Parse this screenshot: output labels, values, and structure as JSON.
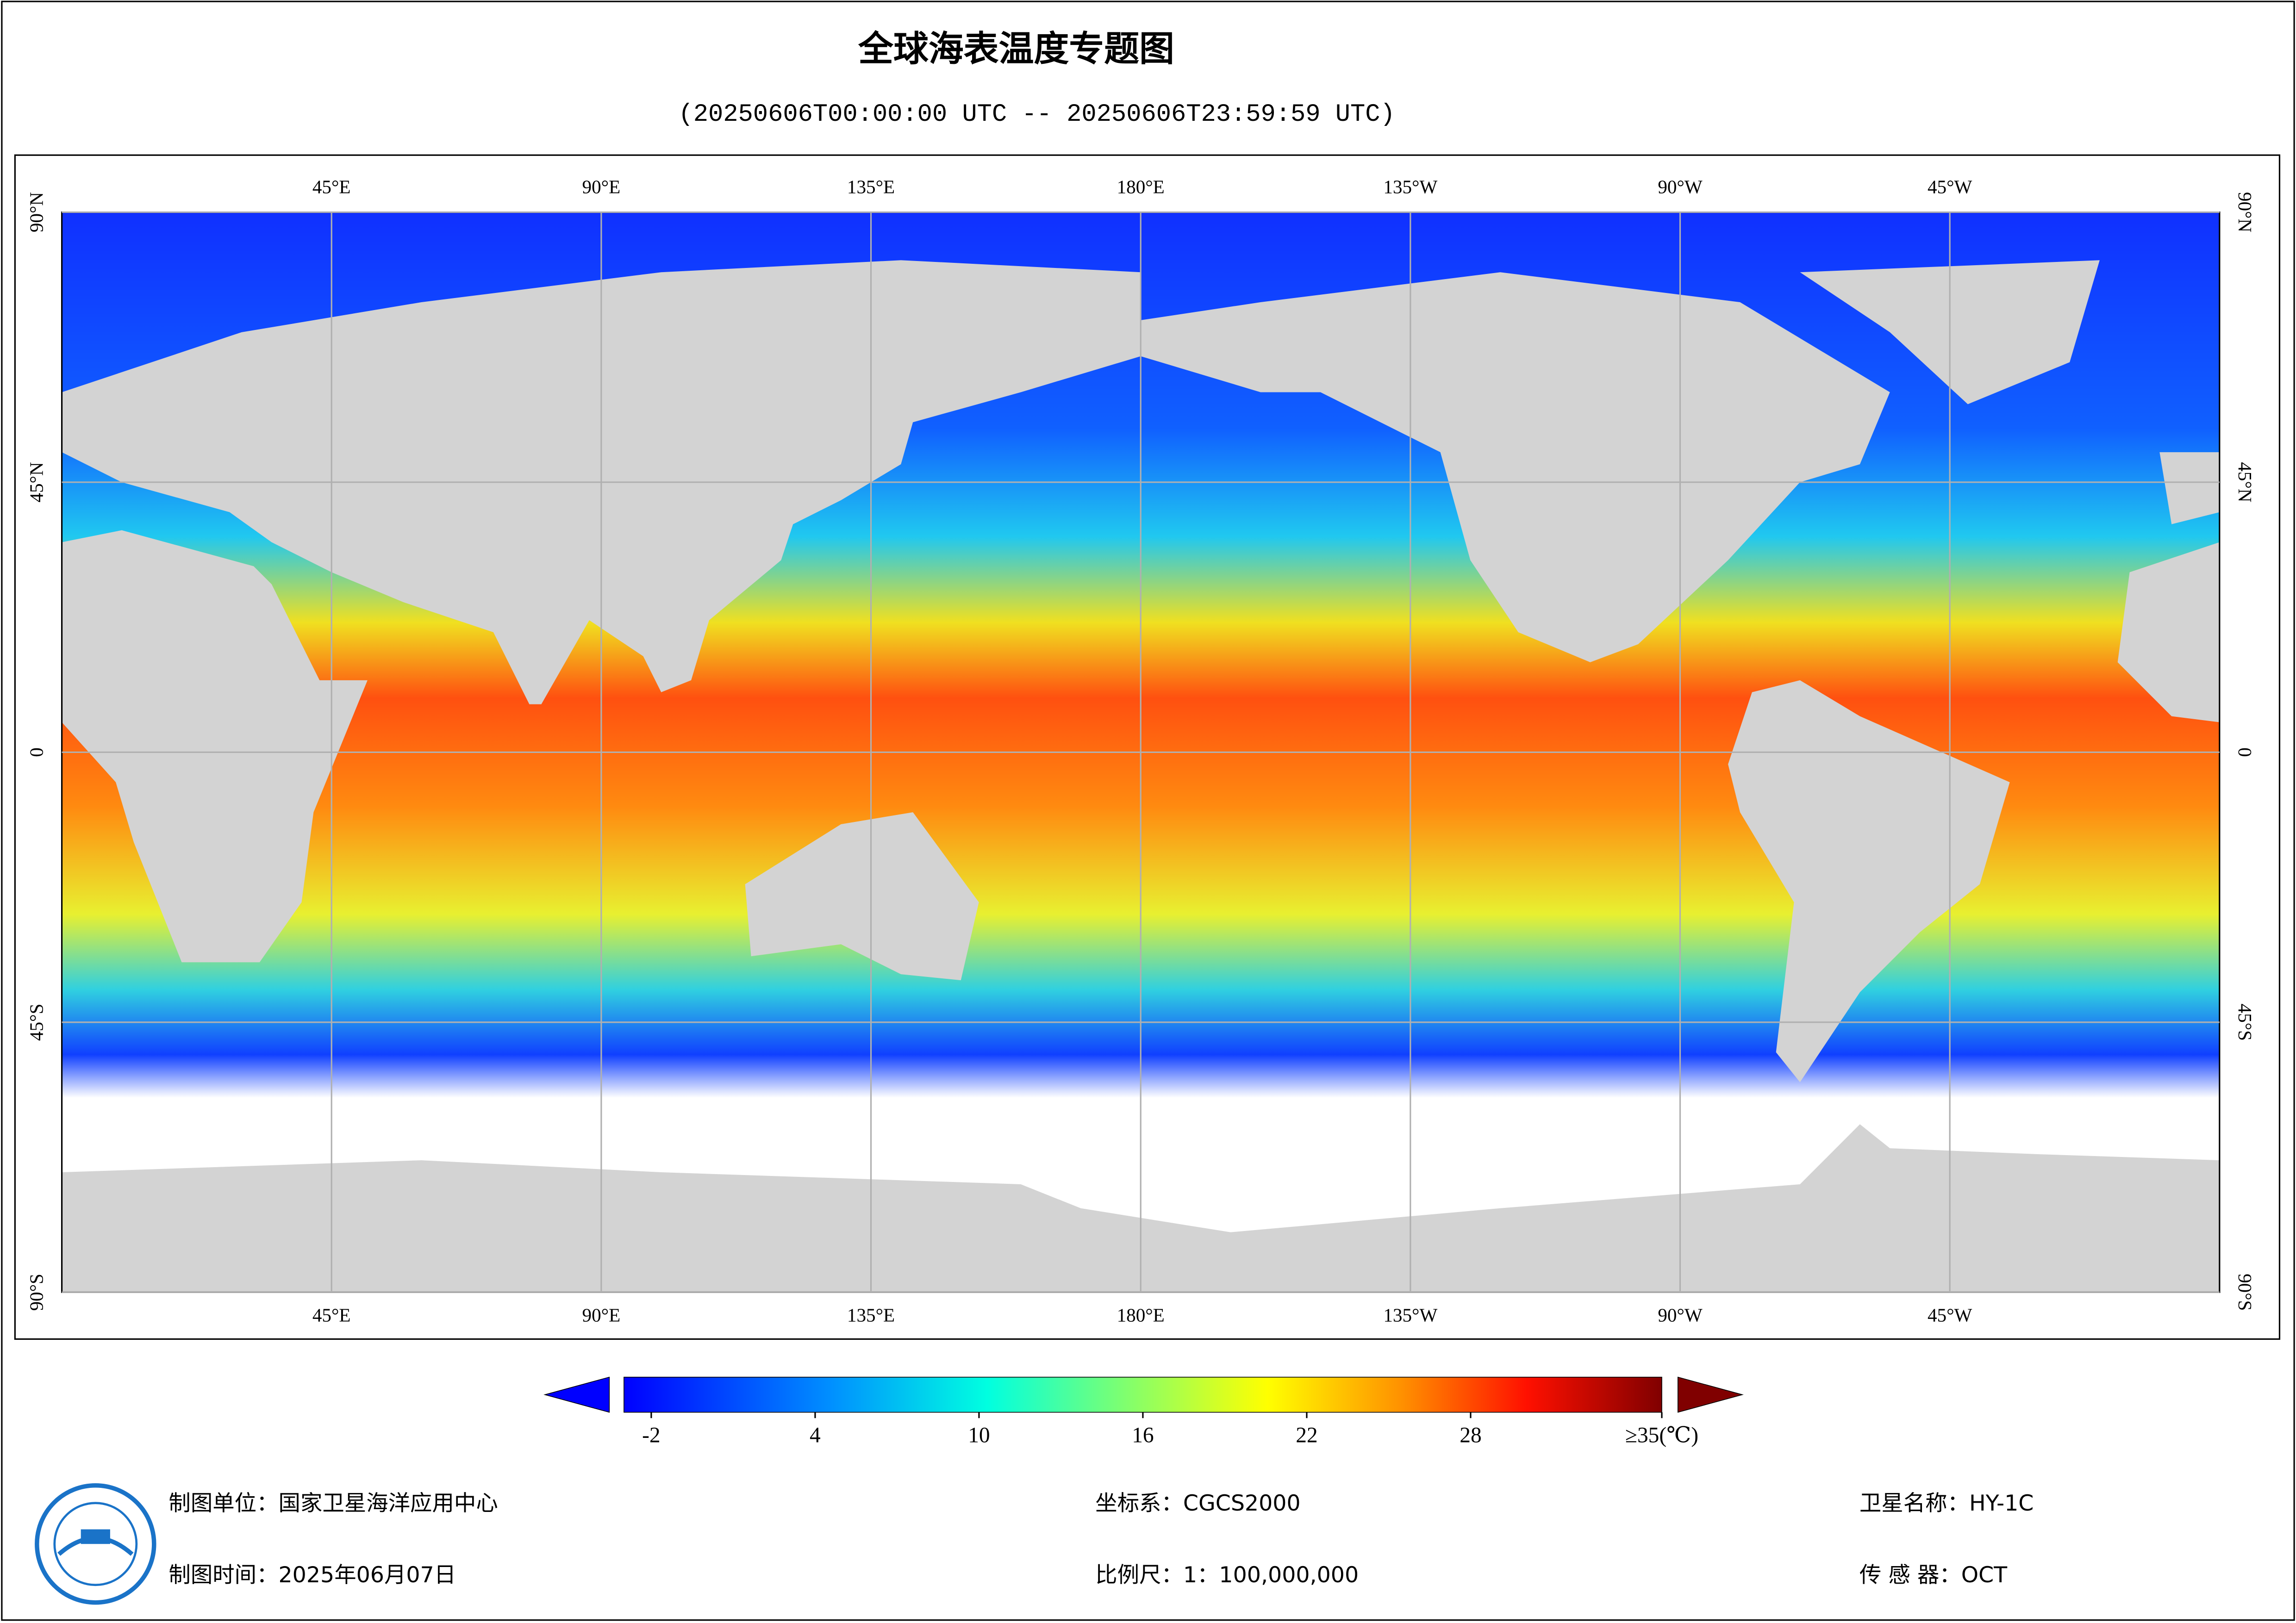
{
  "title": "全球海表温度专题图",
  "subtitle": "(20250606T00:00:00 UTC -- 20250606T23:59:59 UTC)",
  "map": {
    "lon_range": [
      0,
      360
    ],
    "lat_range": [
      -90,
      90
    ],
    "lon_ticks": [
      {
        "value": 45,
        "label": "45°E"
      },
      {
        "value": 90,
        "label": "90°E"
      },
      {
        "value": 135,
        "label": "135°E"
      },
      {
        "value": 180,
        "label": "180°E"
      },
      {
        "value": 225,
        "label": "135°W"
      },
      {
        "value": 270,
        "label": "90°W"
      },
      {
        "value": 315,
        "label": "45°W"
      }
    ],
    "lat_ticks": [
      {
        "value": 90,
        "label": "90°N"
      },
      {
        "value": 45,
        "label": "45°N"
      },
      0,
      {
        "value": -45,
        "label": "45°S"
      },
      {
        "value": -90,
        "label": "90°S"
      }
    ]
  },
  "colorbar": {
    "range": [
      -3,
      35
    ],
    "ticks": [
      -2,
      4,
      10,
      16,
      22,
      28,
      {
        "value": 35,
        "label": "≥35(℃)"
      }
    ]
  },
  "footer": {
    "unit": "制图单位：国家卫星海洋应用中心",
    "date": "制图时间：2025年06月07日",
    "crs": "坐标系：CGCS2000",
    "scale": "比例尺：1：100,000,000",
    "satellite": "卫星名称：HY-1C",
    "sensor": "传 感 器：OCT"
  }
}
